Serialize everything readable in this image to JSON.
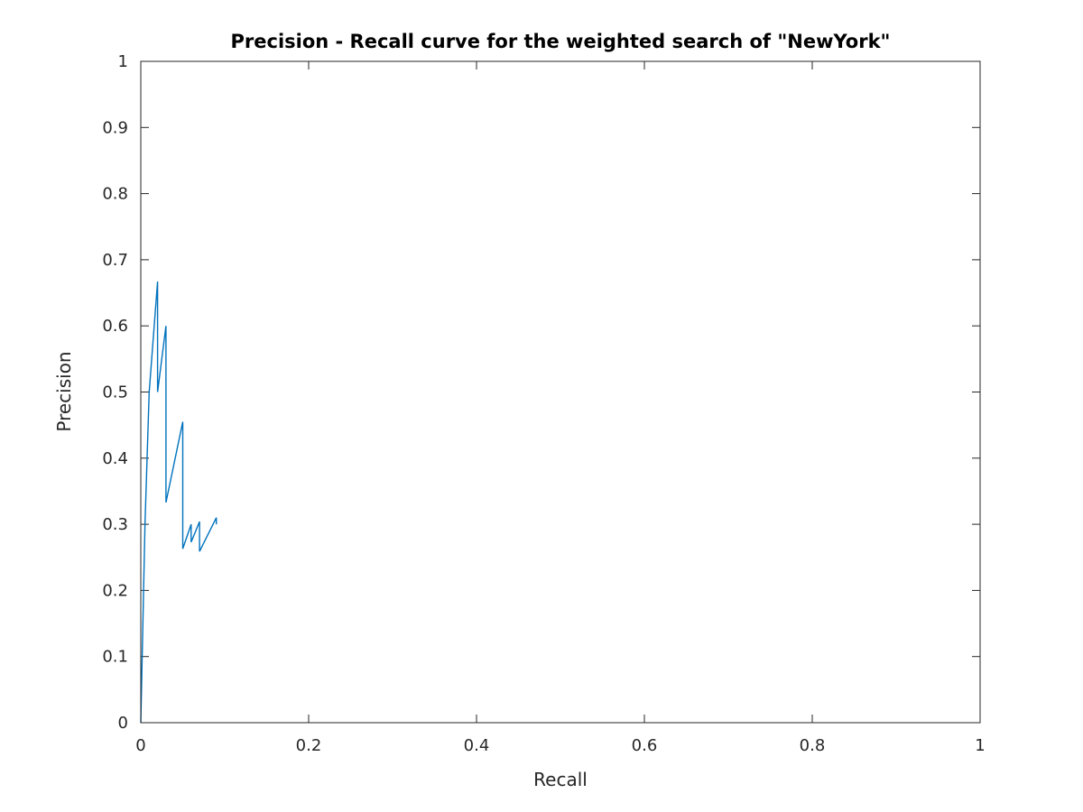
{
  "chart_data": {
    "type": "line",
    "title": "Precision - Recall curve for the weighted search of \"NewYork\"",
    "xlabel": "Recall",
    "ylabel": "Precision",
    "xlim": [
      0,
      1
    ],
    "ylim": [
      0,
      1
    ],
    "xticks": [
      0,
      0.2,
      0.4,
      0.6,
      0.8,
      1
    ],
    "xtick_labels": [
      "0",
      "0.2",
      "0.4",
      "0.6",
      "0.8",
      "1"
    ],
    "yticks": [
      0,
      0.1,
      0.2,
      0.3,
      0.4,
      0.5,
      0.6,
      0.7,
      0.8,
      0.9,
      1
    ],
    "ytick_labels": [
      "0",
      "0.1",
      "0.2",
      "0.3",
      "0.4",
      "0.5",
      "0.6",
      "0.7",
      "0.8",
      "0.9",
      "1"
    ],
    "grid": false,
    "box": true,
    "series": [
      {
        "color": "#0072bd",
        "x": [
          0,
          0.005,
          0.01,
          0.02,
          0.02,
          0.03,
          0.03,
          0.05,
          0.05,
          0.06,
          0.06,
          0.07,
          0.07,
          0.09,
          0.09
        ],
        "y": [
          0,
          0.3,
          0.5,
          0.667,
          0.5,
          0.6,
          0.333,
          0.455,
          0.263,
          0.3,
          0.273,
          0.304,
          0.259,
          0.31,
          0.3
        ]
      }
    ]
  }
}
